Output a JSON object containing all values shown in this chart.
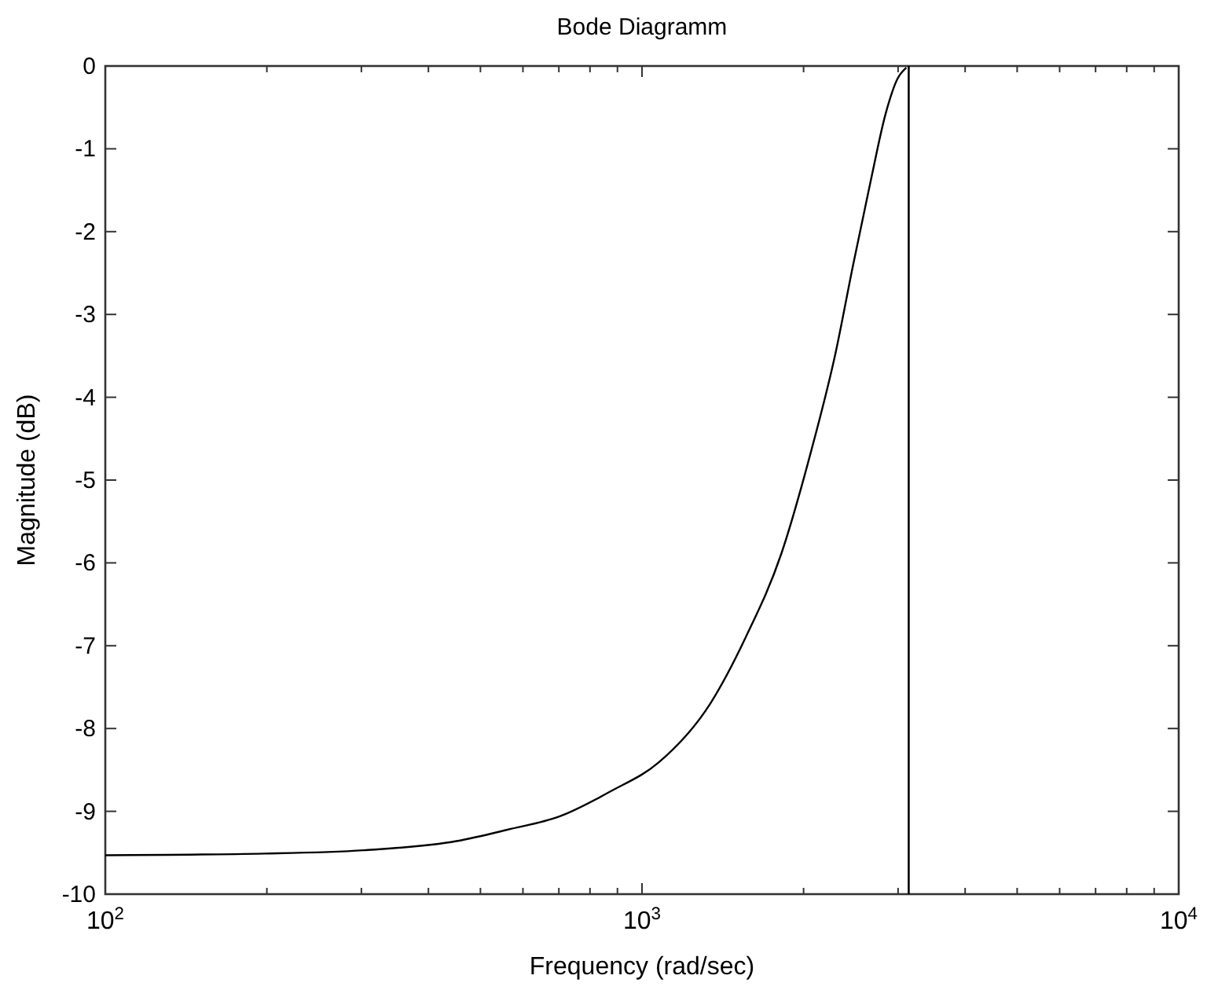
{
  "chart_data": {
    "type": "line",
    "title": "Bode Diagramm",
    "xlabel": "Frequency (rad/sec)",
    "ylabel": "Magnitude (dB)",
    "log": "x",
    "xlim": [
      100,
      10000
    ],
    "ylim": [
      -10,
      0
    ],
    "xticks": [
      {
        "value": 100,
        "label": "10$^{2}$"
      },
      {
        "value": 200,
        "label": null
      },
      {
        "value": 300,
        "label": null
      },
      {
        "value": 400,
        "label": null
      },
      {
        "value": 500,
        "label": null
      },
      {
        "value": 600,
        "label": null
      },
      {
        "value": 700,
        "label": null
      },
      {
        "value": 800,
        "label": null
      },
      {
        "value": 900,
        "label": null
      },
      {
        "value": 1000,
        "label": "10$^{3}$"
      },
      {
        "value": 2000,
        "label": null
      },
      {
        "value": 3000,
        "label": null
      },
      {
        "value": 4000,
        "label": null
      },
      {
        "value": 5000,
        "label": null
      },
      {
        "value": 6000,
        "label": null
      },
      {
        "value": 7000,
        "label": null
      },
      {
        "value": 8000,
        "label": null
      },
      {
        "value": 9000,
        "label": null
      },
      {
        "value": 10000,
        "label": "10$^{4}$"
      }
    ],
    "yticks": [
      -10,
      -9,
      -8,
      -7,
      -6,
      -5,
      -4,
      -3,
      -2,
      -1,
      0
    ],
    "grid": false,
    "marker": "none",
    "line_style": "solid",
    "ref_lines": [
      {
        "axis": "x",
        "value": 3140,
        "color": "#000000"
      }
    ],
    "series": [
      {
        "color": "#000000",
        "x": [
          100,
          198,
          303,
          451,
          563,
          703,
          879,
          1074,
          1340,
          1560,
          1820,
          2066,
          2290,
          2474,
          2669,
          2843,
          2995,
          3108
        ],
        "values": [
          -9.53,
          -9.51,
          -9.47,
          -9.36,
          -9.22,
          -9.06,
          -8.75,
          -8.41,
          -7.7,
          -6.9,
          -5.88,
          -4.65,
          -3.49,
          -2.4,
          -1.38,
          -0.58,
          -0.15,
          -0.02
        ]
      }
    ]
  }
}
